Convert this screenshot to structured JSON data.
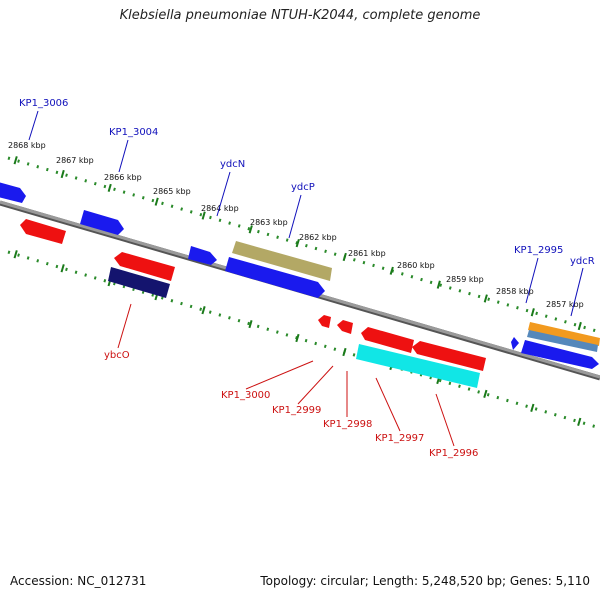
{
  "title": "Klebsiella pneumoniae NTUH-K2044, complete genome",
  "footer": {
    "accession": "Accession: NC_012731",
    "summary": "Topology: circular; Length: 5,248,520 bp; Genes: 5,110"
  },
  "colors": {
    "backbone": "#8a8a8a",
    "ruler_dots": "#2a8a2a",
    "tick": "#1a7a1a",
    "forward_gene": "#1a1aee",
    "reverse_gene": "#ee1111",
    "top_label": "#1111bb",
    "bottom_label": "#cc1111",
    "olive_gene": "#b3a865",
    "cyan_gene": "#11e6e6",
    "navy_gene": "#14146e",
    "orange_gene": "#f29a1f",
    "steel_gene": "#5588bb"
  },
  "kbp_labels": [
    "2868 kbp",
    "2867 kbp",
    "2866 kbp",
    "2865 kbp",
    "2864 kbp",
    "2863 kbp",
    "2862 kbp",
    "2861 kbp",
    "2860 kbp",
    "2859 kbp",
    "2858 kbp",
    "2857 kbp"
  ],
  "gene_labels_top": [
    "KP1_3006",
    "KP1_3004",
    "ydcN",
    "ydcP",
    "KP1_2995",
    "ydcR"
  ],
  "gene_labels_bottom": [
    "ybcO",
    "KP1_3000",
    "KP1_2999",
    "KP1_2998",
    "KP1_2997",
    "KP1_2996"
  ]
}
